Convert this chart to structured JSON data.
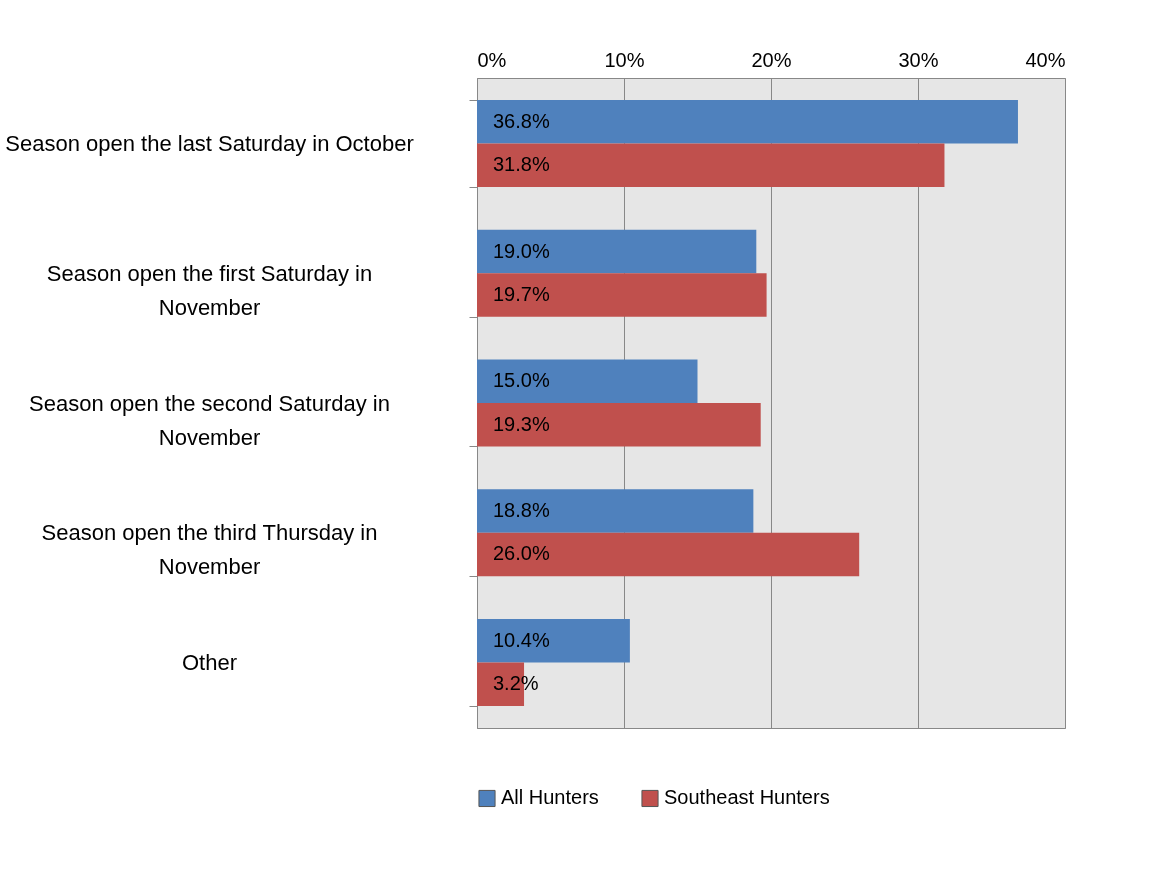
{
  "chart_data": {
    "type": "bar",
    "orientation": "horizontal",
    "categories": [
      "Season open the last Saturday in October",
      "Season open the first Saturday in November",
      "Season open the second Saturday in November",
      "Season open the third Thursday in November",
      "Other"
    ],
    "series": [
      {
        "name": "All Hunters",
        "color": "#4f81bd",
        "values": [
          36.8,
          19.0,
          15.0,
          18.8,
          10.4
        ],
        "value_labels": [
          "36.8%",
          "19.0%",
          "15.0%",
          "18.8%",
          "10.4%"
        ]
      },
      {
        "name": "Southeast Hunters",
        "color": "#c0504d",
        "values": [
          31.8,
          19.7,
          19.3,
          26.0,
          3.2
        ],
        "value_labels": [
          "31.8%",
          "19.7%",
          "19.3%",
          "26.0%",
          "3.2%"
        ]
      }
    ],
    "xlim": [
      0,
      40
    ],
    "xticks": [
      {
        "value": 0,
        "label": "0%"
      },
      {
        "value": 10,
        "label": "10%"
      },
      {
        "value": 20,
        "label": "20%"
      },
      {
        "value": 30,
        "label": "30%"
      },
      {
        "value": 40,
        "label": "40%"
      }
    ],
    "grid": "x",
    "legend": "bottom"
  }
}
